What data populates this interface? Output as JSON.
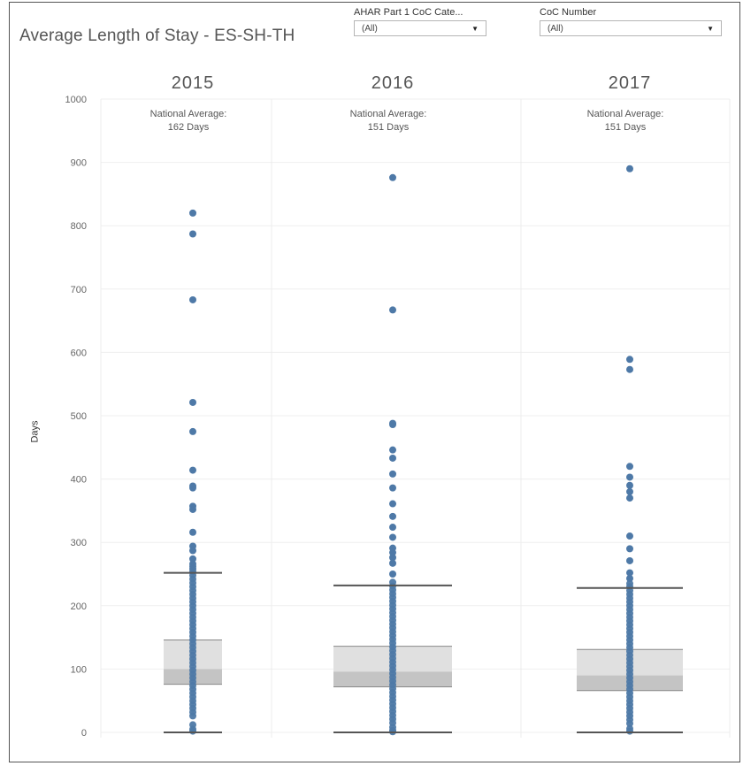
{
  "chart_data": {
    "type": "scatter",
    "title": "Average Length of Stay - ES-SH-TH",
    "ylabel": "Days",
    "ylim": [
      0,
      1000
    ],
    "yticks": [
      0,
      100,
      200,
      300,
      400,
      500,
      600,
      700,
      800,
      900,
      1000
    ],
    "grid": true,
    "colors": {
      "point": "#4e79a7",
      "box_upper": "#e0e0e0",
      "box_lower": "#c4c4c4",
      "whisker": "#555555",
      "grid": "#efefef"
    },
    "panels": [
      {
        "year": "2015",
        "annotation_line1": "National Average:",
        "annotation_line2": "162 Days",
        "box": {
          "whisker_low": 0,
          "q1": 76,
          "median": 100,
          "q3": 146,
          "whisker_high": 252
        },
        "outliers": [
          820,
          787,
          683,
          521,
          475,
          414,
          389,
          386,
          357,
          352,
          316,
          294,
          287,
          274,
          266,
          262,
          258
        ],
        "points": [
          254,
          248,
          242,
          236,
          230,
          224,
          218,
          212,
          206,
          200,
          194,
          188,
          182,
          176,
          170,
          164,
          158,
          152,
          146,
          140,
          134,
          128,
          122,
          116,
          110,
          104,
          98,
          92,
          86,
          80,
          74,
          68,
          62,
          56,
          50,
          44,
          38,
          32,
          26,
          12,
          5,
          2
        ]
      },
      {
        "year": "2016",
        "annotation_line1": "National Average:",
        "annotation_line2": "151 Days",
        "box": {
          "whisker_low": 0,
          "q1": 72,
          "median": 96,
          "q3": 136,
          "whisker_high": 232
        },
        "outliers": [
          876,
          667,
          488,
          486,
          446,
          433,
          408,
          386,
          361,
          341,
          324,
          308,
          291,
          284,
          276,
          267,
          250
        ],
        "points": [
          237,
          231,
          225,
          219,
          213,
          207,
          201,
          195,
          189,
          183,
          177,
          171,
          165,
          159,
          153,
          147,
          141,
          135,
          129,
          123,
          117,
          111,
          105,
          99,
          93,
          87,
          81,
          75,
          69,
          63,
          57,
          51,
          45,
          39,
          33,
          27,
          21,
          15,
          8,
          3,
          1
        ]
      },
      {
        "year": "2017",
        "annotation_line1": "National Average:",
        "annotation_line2": "151 Days",
        "box": {
          "whisker_low": 0,
          "q1": 66,
          "median": 90,
          "q3": 131,
          "whisker_high": 228
        },
        "outliers": [
          890,
          589,
          573,
          420,
          403,
          390,
          380,
          370,
          310,
          290,
          271,
          252,
          243
        ],
        "points": [
          235,
          230,
          224,
          218,
          212,
          206,
          200,
          194,
          188,
          182,
          176,
          170,
          164,
          158,
          152,
          146,
          140,
          134,
          128,
          122,
          116,
          110,
          104,
          98,
          92,
          86,
          80,
          74,
          68,
          62,
          56,
          50,
          44,
          38,
          32,
          26,
          20,
          14,
          6,
          2
        ]
      }
    ]
  },
  "filters": [
    {
      "label": "AHAR Part 1 CoC Cate...",
      "value": "(All)"
    },
    {
      "label": "CoC Number",
      "value": "(All)"
    }
  ]
}
